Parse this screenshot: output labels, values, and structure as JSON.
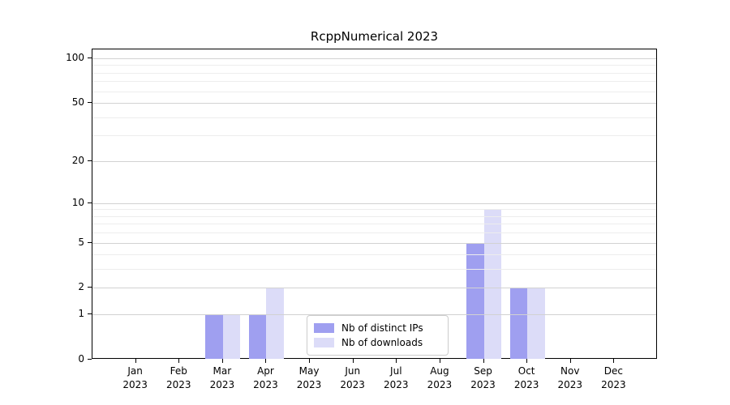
{
  "chart_data": {
    "type": "bar",
    "title": "RcppNumerical 2023",
    "xlabel": "",
    "ylabel": "",
    "categories": [
      "Jan",
      "Feb",
      "Mar",
      "Apr",
      "May",
      "Jun",
      "Jul",
      "Aug",
      "Sep",
      "Oct",
      "Nov",
      "Dec"
    ],
    "category_year": "2023",
    "series": [
      {
        "name": "Nb of distinct IPs",
        "color": "#9f9ff0",
        "values": [
          0,
          0,
          1,
          1,
          0,
          0,
          0,
          0,
          5,
          2,
          0,
          0
        ]
      },
      {
        "name": "Nb of downloads",
        "color": "#dcdcf8",
        "values": [
          0,
          0,
          1,
          2,
          0,
          0,
          0,
          0,
          9,
          2,
          0,
          0
        ]
      }
    ],
    "yscale": "log1p",
    "y_ticks": [
      0,
      1,
      2,
      5,
      10,
      20,
      50,
      100
    ],
    "y_minor_gridlines": [
      3,
      4,
      6,
      7,
      8,
      9,
      30,
      40,
      60,
      70,
      80,
      90
    ],
    "ylim": [
      0,
      115
    ],
    "grid": true,
    "grid_over_bars": true,
    "legend_position": "lower-center-inside",
    "colors": {
      "major_grid": "#d2d2d2",
      "minor_grid": "#ededed",
      "axis": "#000000",
      "background": "#ffffff"
    }
  }
}
